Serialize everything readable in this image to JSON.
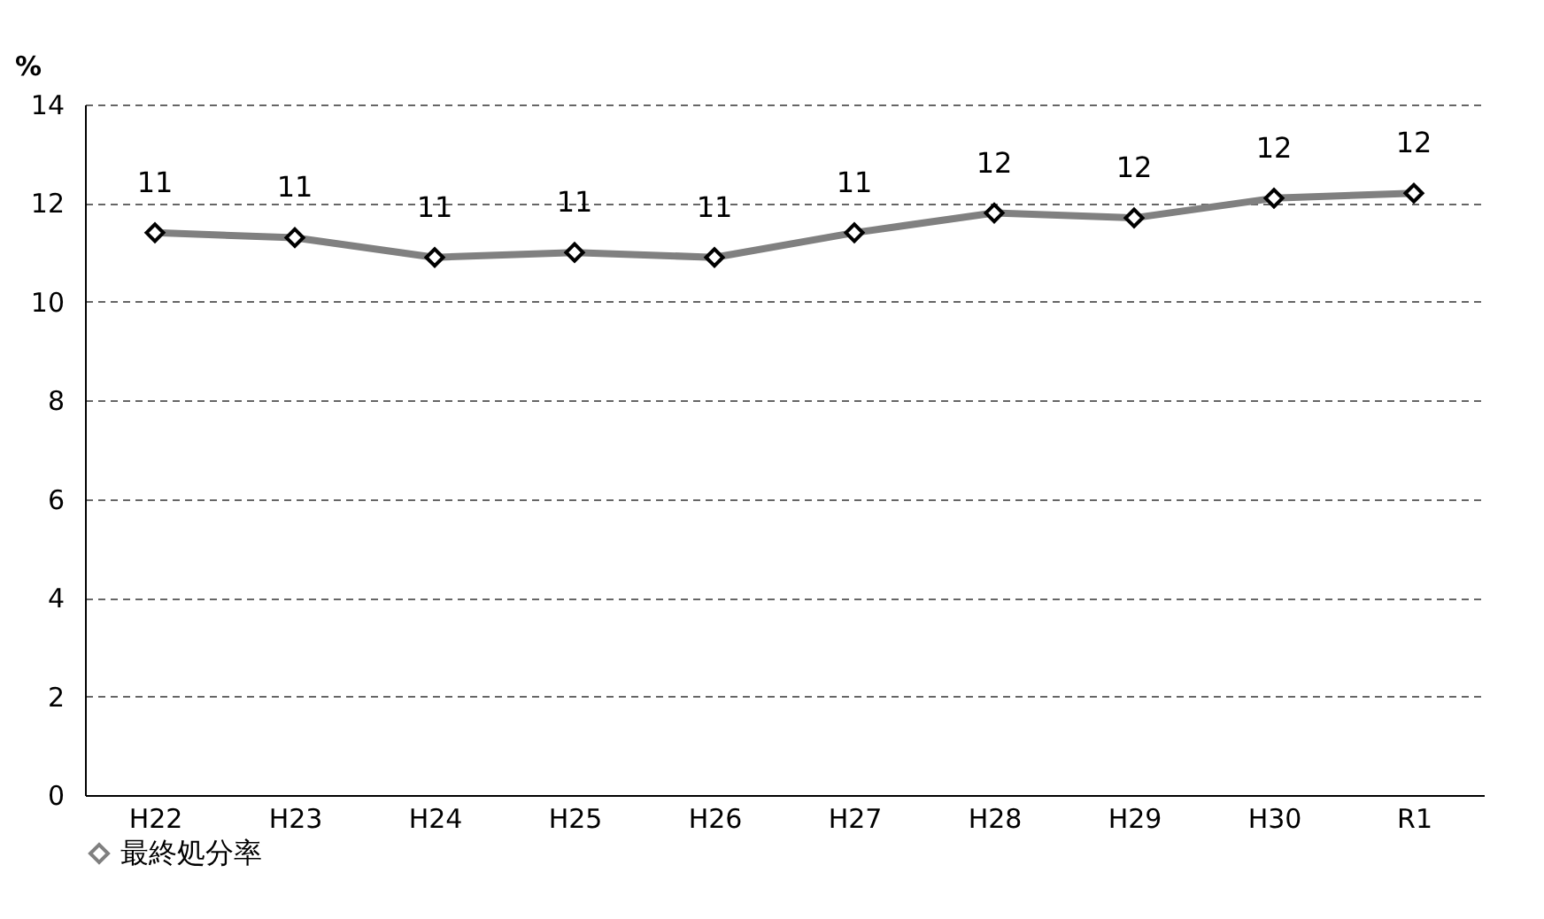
{
  "chart_data": {
    "type": "line",
    "ylabel": "%",
    "categories": [
      "H22",
      "H23",
      "H24",
      "H25",
      "H26",
      "H27",
      "H28",
      "H29",
      "H30",
      "R1"
    ],
    "series": [
      {
        "name": "最終処分率",
        "color": "#808080",
        "values": [
          11.4,
          11.3,
          10.9,
          11.0,
          10.9,
          11.4,
          11.8,
          11.7,
          12.1,
          12.2
        ],
        "value_labels": [
          "11",
          "11",
          "11",
          "11",
          "11",
          "11",
          "12",
          "12",
          "12",
          "12"
        ]
      }
    ],
    "ylim": [
      0,
      14
    ],
    "yticks": [
      0,
      2,
      4,
      6,
      8,
      10,
      12,
      14
    ],
    "grid": "y",
    "legend": "bottom",
    "marker": "diamond",
    "line_style": "solid"
  }
}
